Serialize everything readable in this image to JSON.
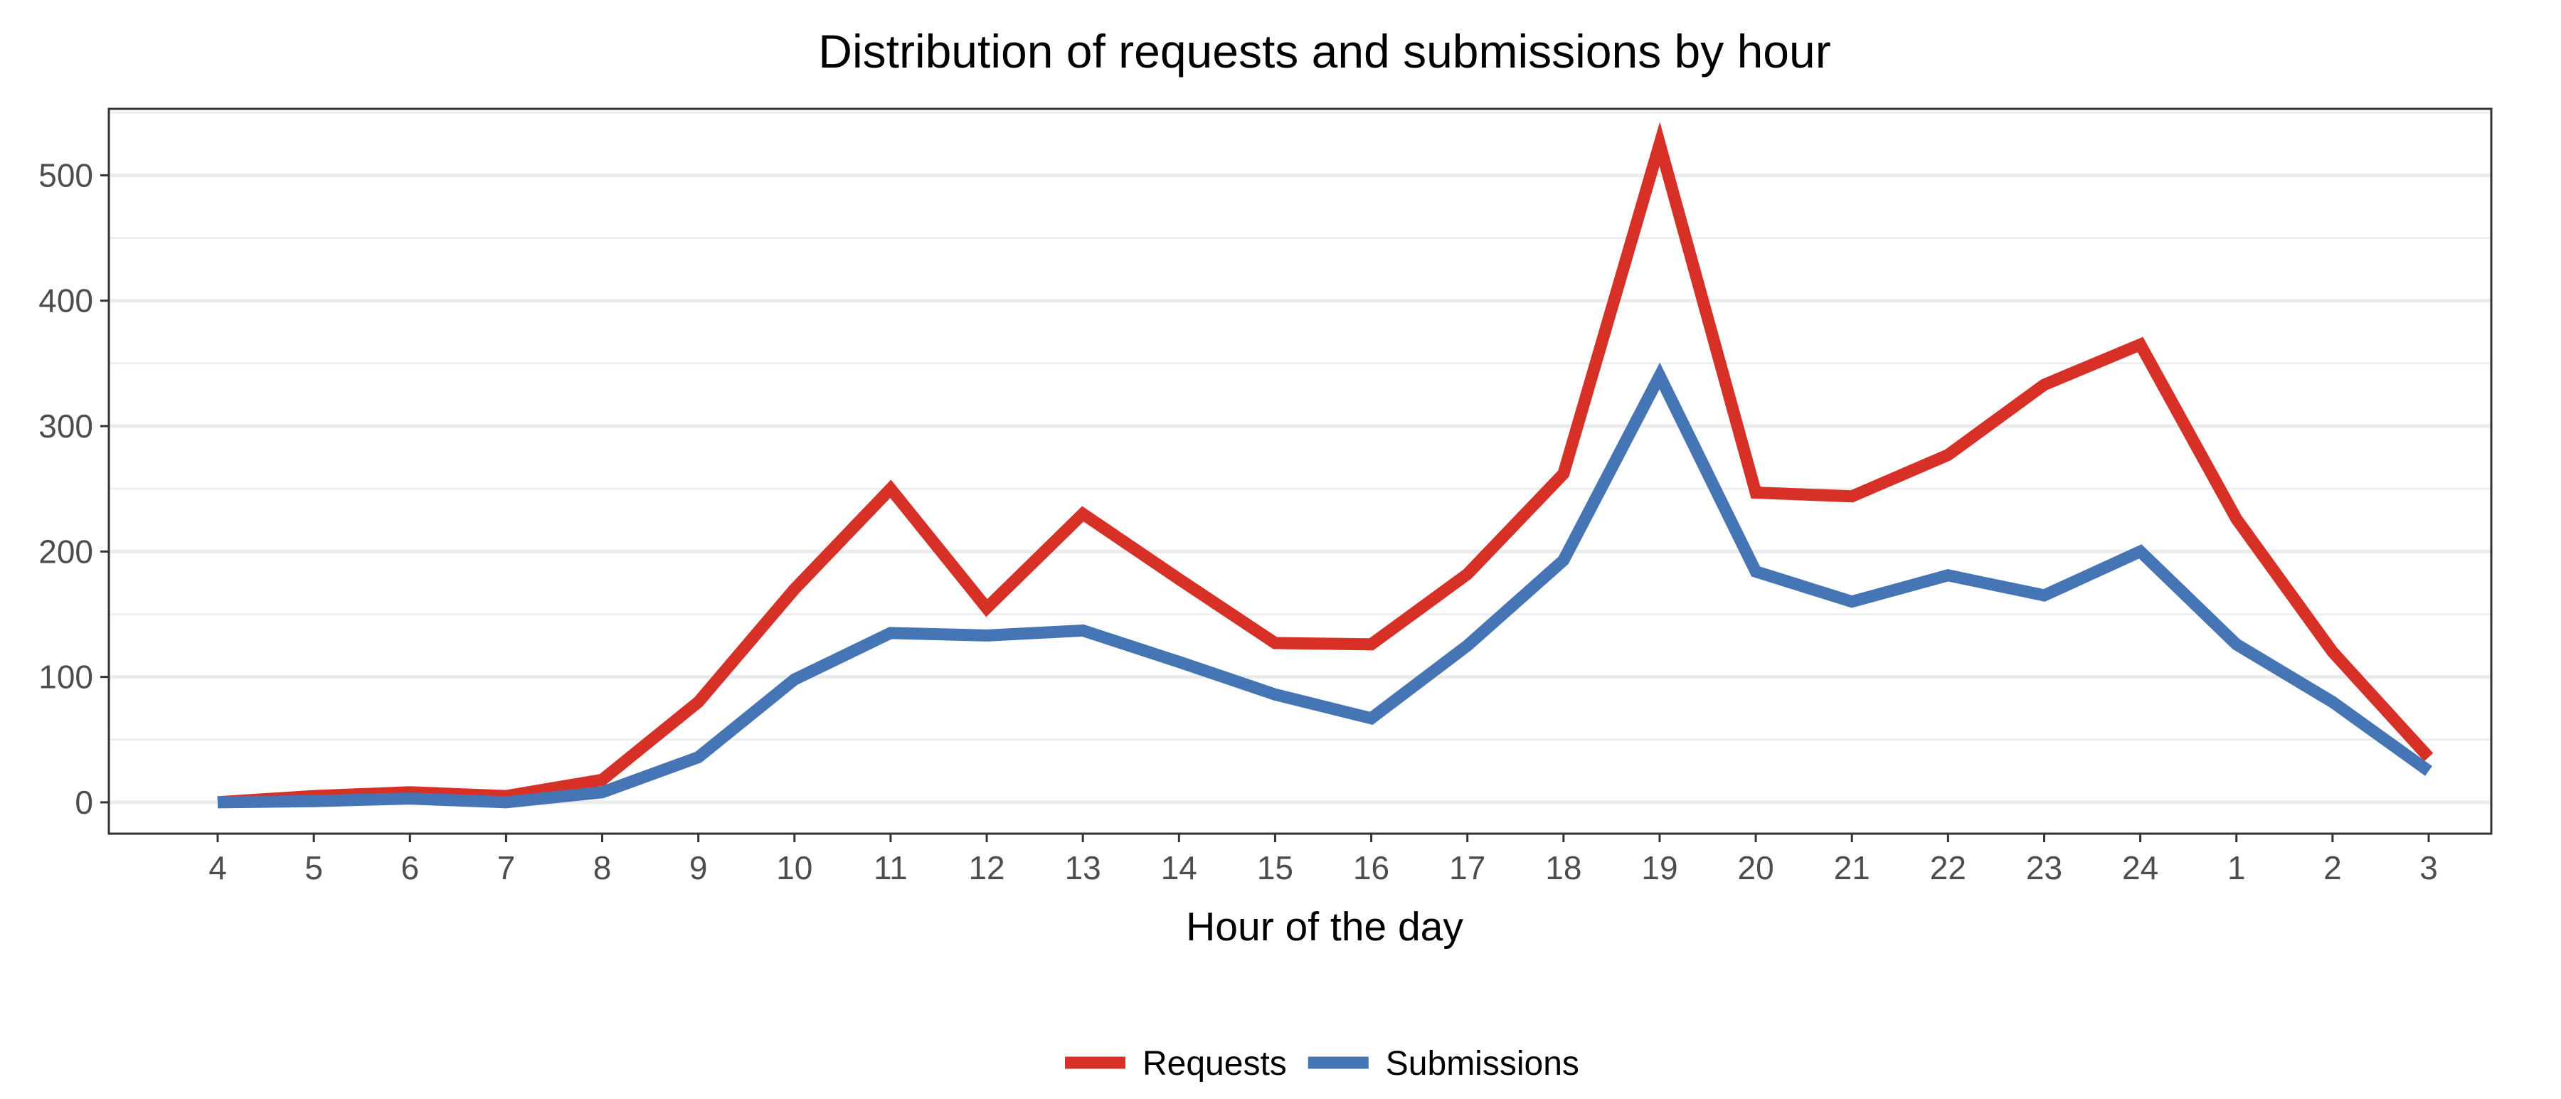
{
  "chart_data": {
    "type": "line",
    "title": "Distribution of requests and submissions by hour",
    "xlabel": "Hour of the day",
    "ylabel": "",
    "categories": [
      "4",
      "5",
      "6",
      "7",
      "8",
      "9",
      "10",
      "11",
      "12",
      "13",
      "14",
      "15",
      "16",
      "17",
      "18",
      "19",
      "20",
      "21",
      "22",
      "23",
      "24",
      "1",
      "2",
      "3"
    ],
    "series": [
      {
        "name": "Requests",
        "color": "#d73027",
        "values": [
          0,
          5,
          8,
          5,
          18,
          80,
          170,
          250,
          155,
          230,
          178,
          127,
          126,
          182,
          262,
          525,
          247,
          244,
          277,
          333,
          365,
          226,
          120,
          36
        ]
      },
      {
        "name": "Submissions",
        "color": "#4575b4",
        "values": [
          0,
          1,
          3,
          0,
          8,
          36,
          98,
          135,
          133,
          137,
          112,
          86,
          67,
          125,
          193,
          340,
          184,
          160,
          181,
          165,
          200,
          126,
          80,
          25
        ]
      }
    ],
    "ylim": [
      -25,
      553
    ],
    "yticks": [
      0,
      100,
      200,
      300,
      400,
      500
    ],
    "grid": true,
    "legend_position": "bottom"
  }
}
